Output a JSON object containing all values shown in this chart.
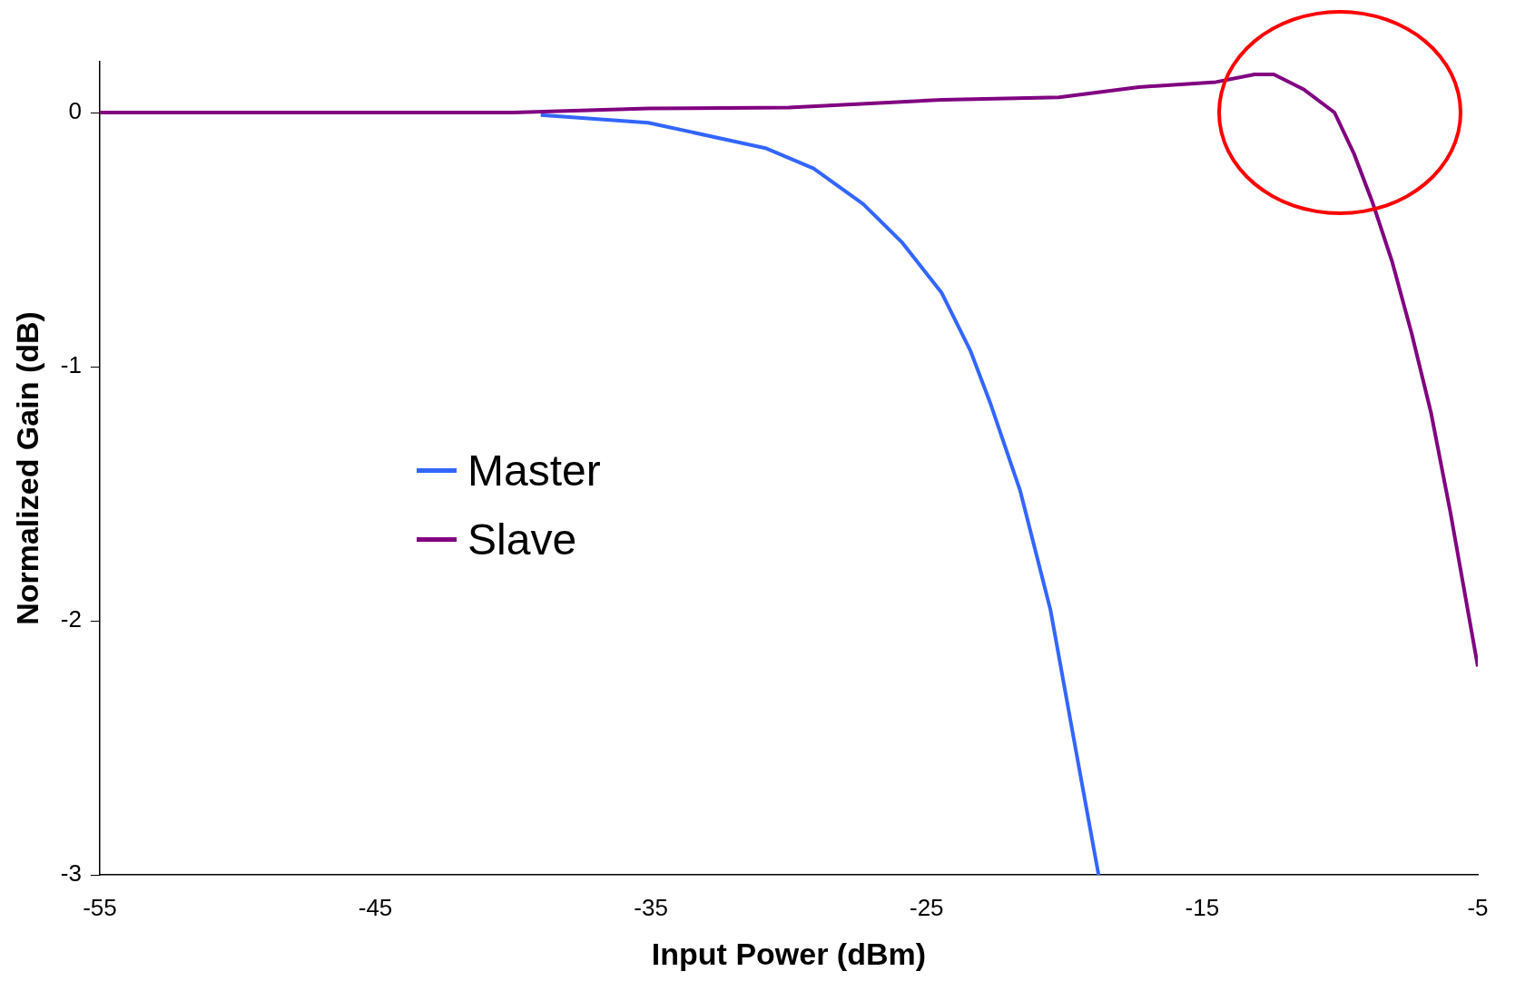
{
  "chart_data": {
    "type": "line",
    "xlabel": "Input Power (dBm)",
    "ylabel": "Normalized Gain (dB)",
    "xlim": [
      -55,
      -5
    ],
    "xticks": [
      -55,
      -45,
      -35,
      -25,
      -15,
      -5
    ],
    "ylim": [
      -3,
      0.2
    ],
    "yticks": [
      -3,
      -2,
      -1,
      0
    ],
    "legend": "left",
    "grid": false,
    "marker": "none",
    "line_style": "solid",
    "series": [
      {
        "name": "Master",
        "color": "#3366ff",
        "x": [
          -39,
          -35.1,
          -30.85,
          -29.1,
          -27.3,
          -25.9,
          -24.45,
          -23.4,
          -22.7,
          -21.6,
          -20.5,
          -19.65,
          -18.76
        ],
        "values": [
          -0.01,
          -0.04,
          -0.14,
          -0.22,
          -0.36,
          -0.51,
          -0.71,
          -0.94,
          -1.14,
          -1.49,
          -1.96,
          -2.47,
          -3
        ]
      },
      {
        "name": "Slave",
        "color": "#800080",
        "x": [
          -55,
          -50,
          -45,
          -40,
          -35.1,
          -30,
          -24.45,
          -20.2,
          -17.3,
          -14.5,
          -13.1,
          -12.4,
          -11.3,
          -10.2,
          -9.5,
          -8.8,
          -8.1,
          -7.4,
          -6.7,
          -6,
          -5
        ],
        "values": [
          0,
          0,
          0,
          0,
          0.016,
          0.02,
          0.05,
          0.06,
          0.1,
          0.12,
          0.15,
          0.15,
          0.09,
          0,
          -0.16,
          -0.36,
          -0.59,
          -0.87,
          -1.18,
          -1.57,
          -2.18
        ]
      }
    ]
  }
}
